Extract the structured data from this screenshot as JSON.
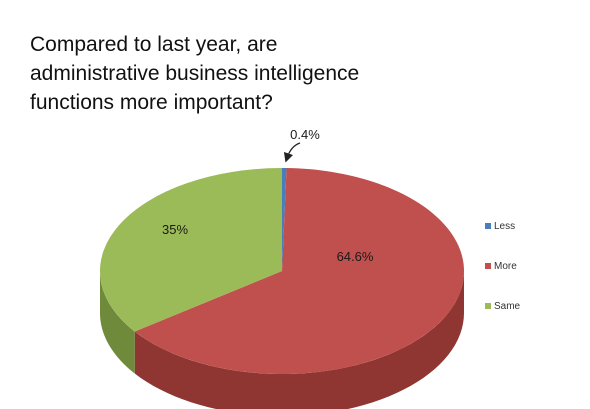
{
  "chart_data": {
    "type": "pie",
    "style": "3d",
    "title_lines": [
      "Compared to last year, are",
      "administrative business intelligence",
      "functions more important?"
    ],
    "slices": [
      {
        "label": "Less",
        "value": 0.4,
        "display": "0.4%",
        "color": "#4a7ebb",
        "side_color": "#365f8c"
      },
      {
        "label": "More",
        "value": 64.6,
        "display": "64.6%",
        "color": "#c0504d",
        "side_color": "#8f3532"
      },
      {
        "label": "Same",
        "value": 35,
        "display": "35%",
        "color": "#9bbb59",
        "side_color": "#6f8a3a"
      }
    ],
    "legend": [
      "Less",
      "More",
      "Same"
    ],
    "legend_position": "right"
  }
}
